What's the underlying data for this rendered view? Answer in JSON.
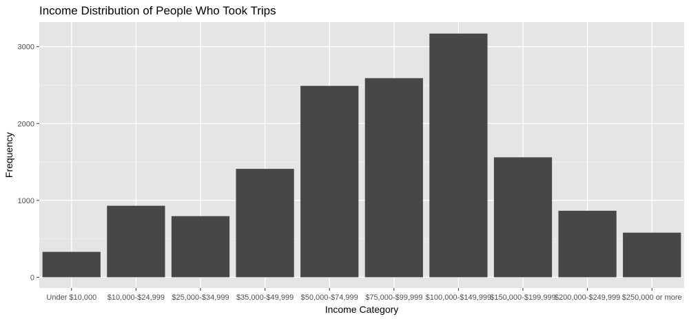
{
  "chart_data": {
    "type": "bar",
    "title": "Income Distribution of People Who Took Trips",
    "xlabel": "Income Category",
    "ylabel": "Frequency",
    "categories": [
      "Under $10,000",
      "$10,000-$24,999",
      "$25,000-$34,999",
      "$35,000-$49,999",
      "$50,000-$74,999",
      "$75,000-$99,999",
      "$100,000-$149,999",
      "$150,000-$199,999",
      "$200,000-$249,999",
      "$250,000 or more"
    ],
    "values": [
      330,
      930,
      795,
      1410,
      2490,
      2590,
      3170,
      1560,
      865,
      580
    ],
    "ylim": [
      -140,
      3320
    ],
    "yticks": [
      0,
      1000,
      2000,
      3000
    ],
    "ytick_labels": [
      "0",
      "1000",
      "2000",
      "3000"
    ],
    "grid": true,
    "legend": "none",
    "colors": {
      "bar": "#474747",
      "panel": "#e5e5e5",
      "grid_major": "#ffffff",
      "grid_minor": "#f0f0f0"
    }
  }
}
